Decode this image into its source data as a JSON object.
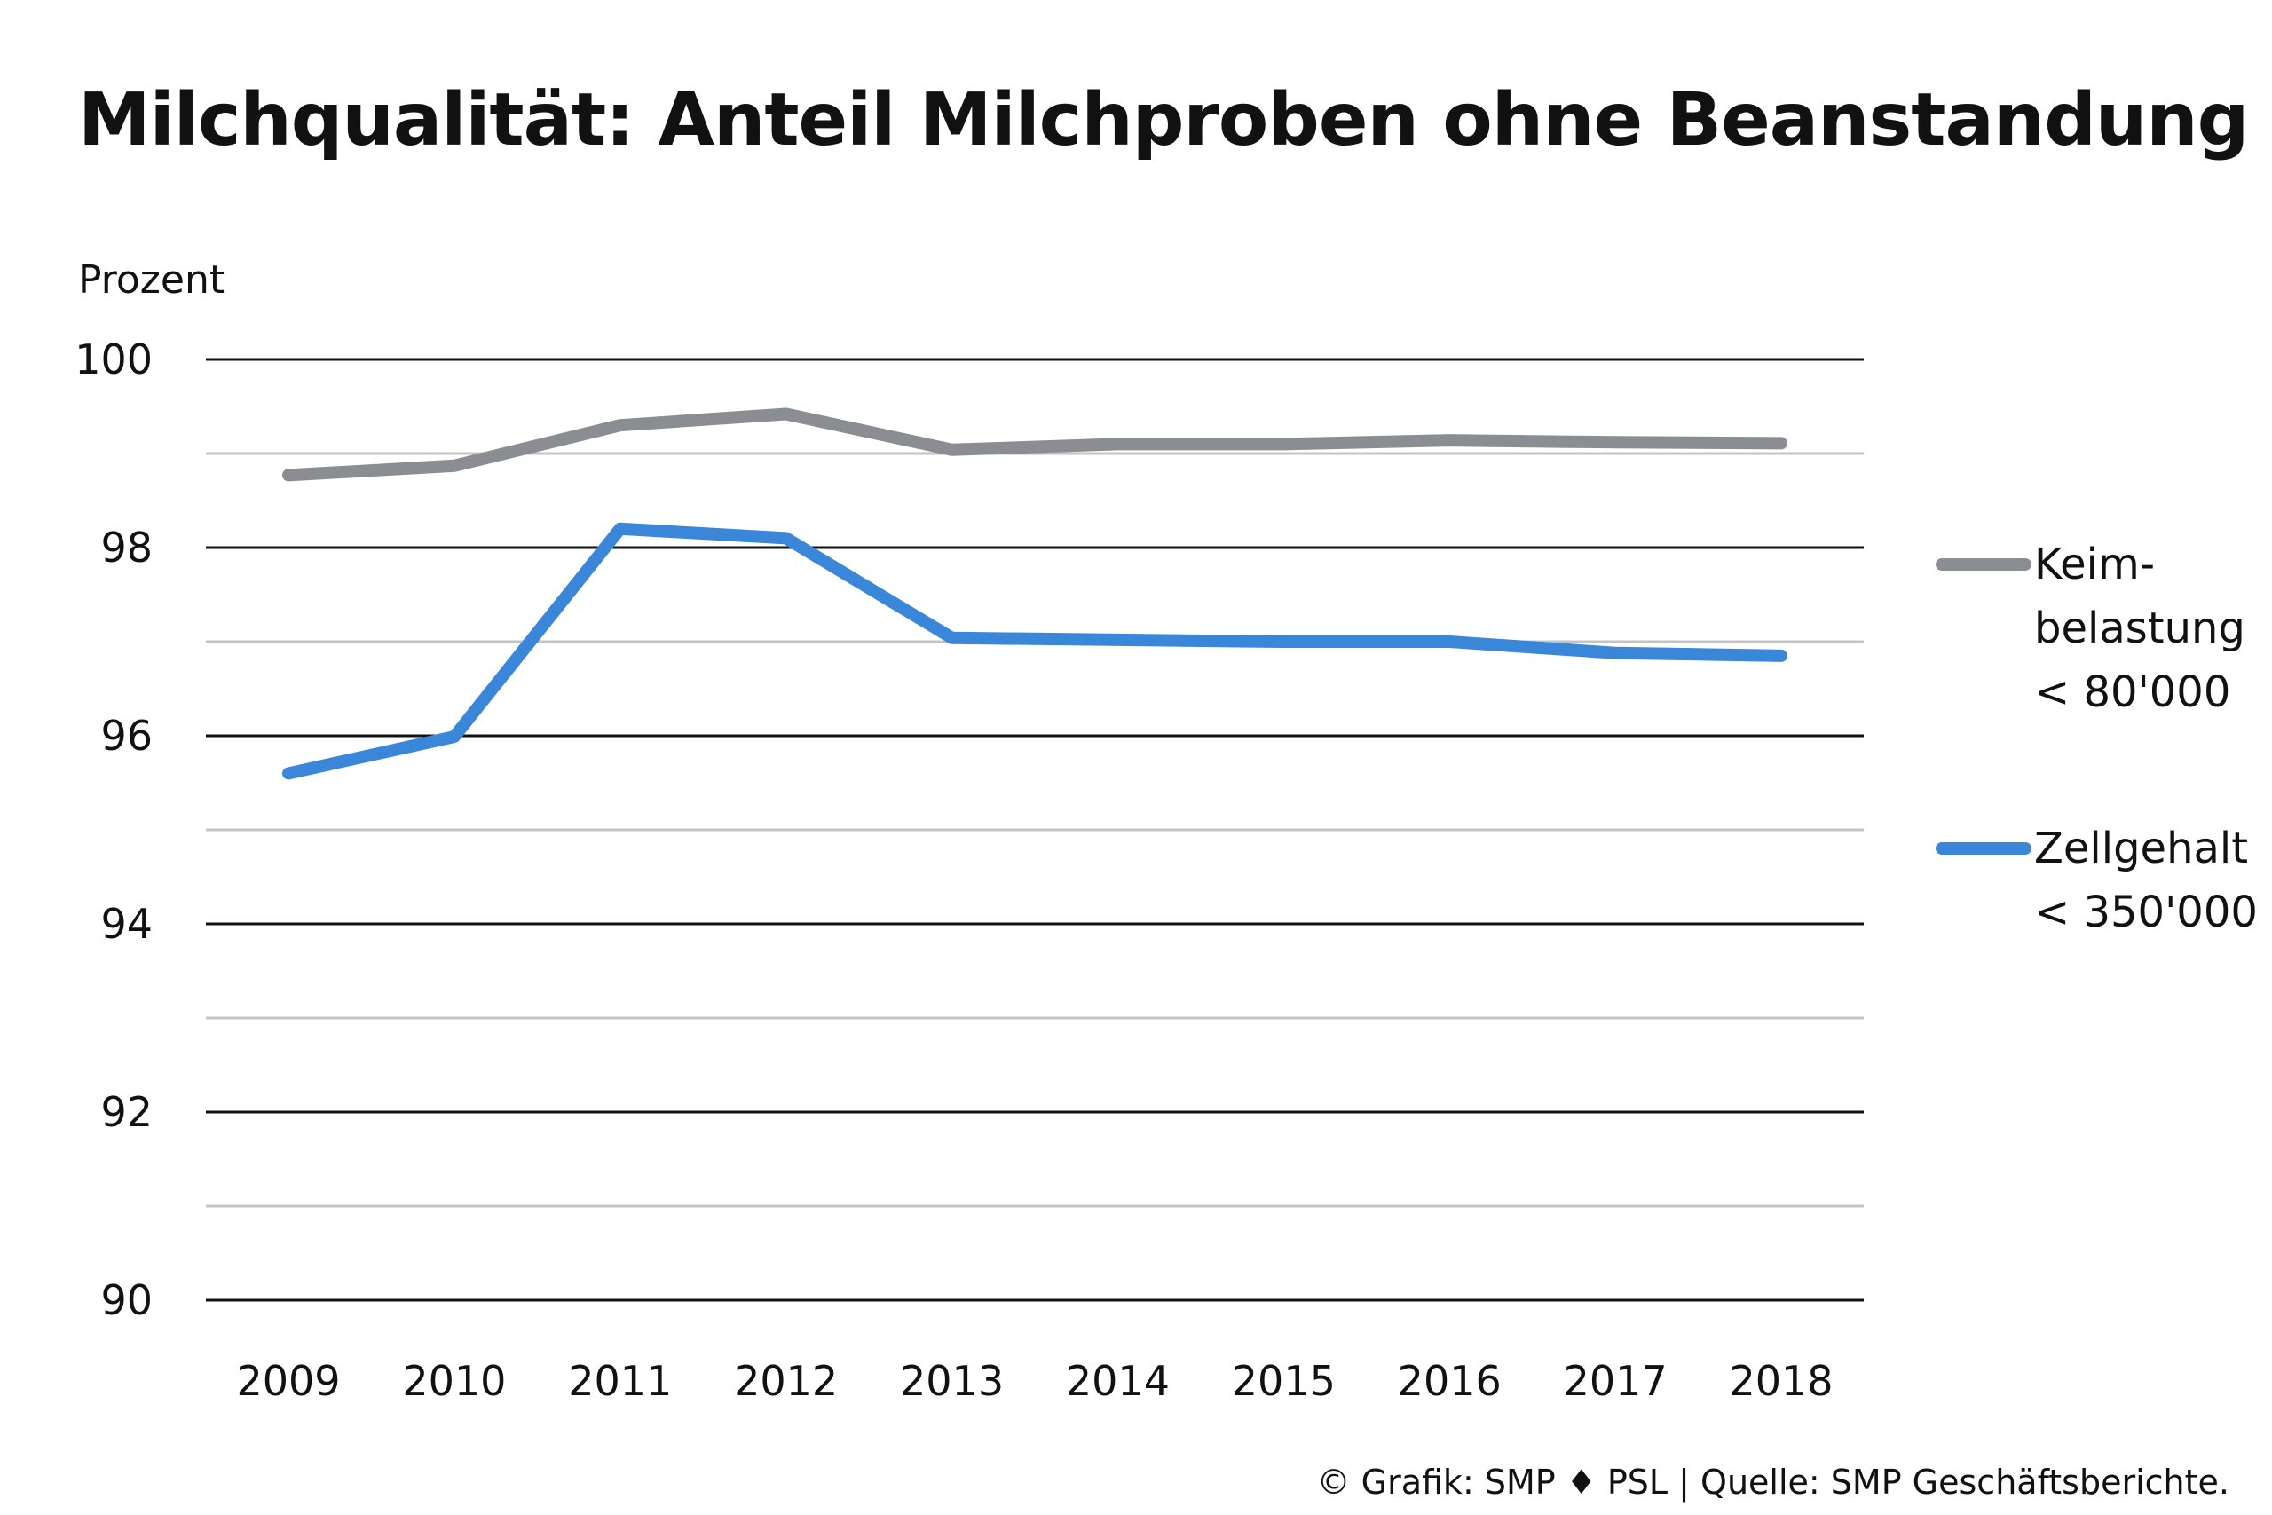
{
  "colors": {
    "keim": "#8a8d91",
    "zell": "#3a86d8",
    "grid_major": "#111111",
    "grid_minor": "#c4c4c4"
  },
  "chart_data": {
    "type": "line",
    "title": "Milchqualität: Anteil Milchproben ohne Beanstandung",
    "ylabel": "Prozent",
    "xlabel": "",
    "ylim": [
      90,
      100
    ],
    "yticks": [
      "90",
      "92",
      "94",
      "96",
      "98",
      "100"
    ],
    "minor_gridlines": [
      91,
      93,
      95,
      97,
      99
    ],
    "categories": [
      "2009",
      "2010",
      "2011",
      "2012",
      "2013",
      "2014",
      "2015",
      "2016",
      "2017",
      "2018"
    ],
    "legend_position": "right",
    "series": [
      {
        "key": "keim",
        "name_lines": [
          "Keim-",
          "belastung",
          "< 80'000"
        ],
        "values": [
          98.77,
          98.87,
          99.3,
          99.42,
          99.04,
          99.1,
          99.1,
          99.14,
          99.12,
          99.11
        ]
      },
      {
        "key": "zell",
        "name_lines": [
          "Zellgehalt",
          "< 350'000"
        ],
        "values": [
          95.6,
          95.99,
          98.2,
          98.1,
          97.04,
          97.02,
          97.0,
          97.0,
          96.88,
          96.85
        ]
      }
    ]
  },
  "footer": "© Grafik: SMP ♦ PSL | Quelle: SMP Geschäftsberichte."
}
